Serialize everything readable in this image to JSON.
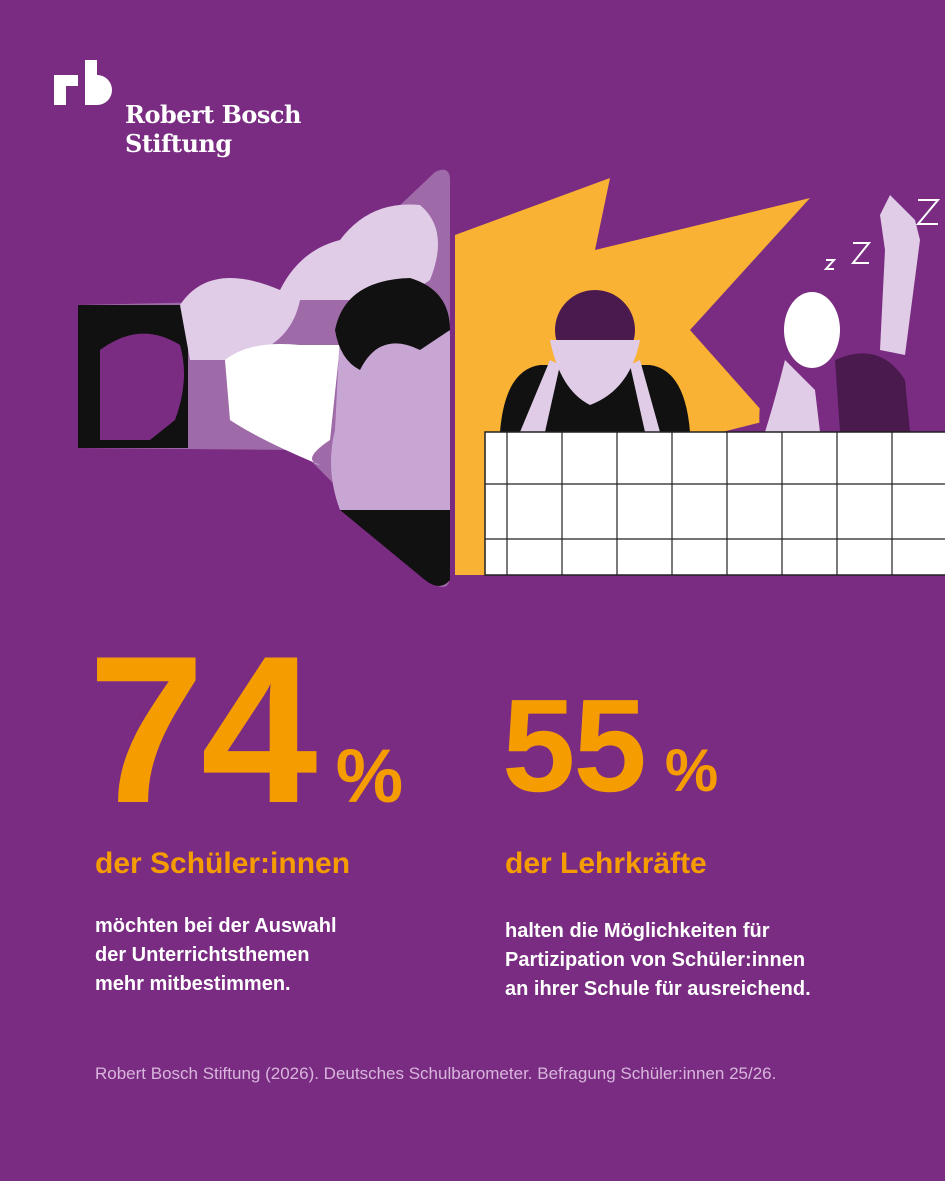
{
  "brand": {
    "name_line1": "Robert Bosch",
    "name_line2": "Stiftung",
    "logo_mark": "rb"
  },
  "colors": {
    "background": "#7a2c82",
    "accent": "#f59c00",
    "text": "#ffffff"
  },
  "stats": [
    {
      "value": "74",
      "unit": "%",
      "group": "der Schüler:innen",
      "lines": [
        "möchten bei der Auswahl",
        "der Unterrichtsthemen",
        "mehr mitbestimmen."
      ]
    },
    {
      "value": "55",
      "unit": "%",
      "group": "der Lehrkräfte",
      "lines": [
        "halten die Möglichkeiten für",
        "Partizipation von Schüler:innen",
        "an ihrer Schule für ausreichend."
      ]
    }
  ],
  "source": "Robert Bosch Stiftung (2026). Deutsches Schulbarometer. Befragung Schüler:innen 25/26."
}
